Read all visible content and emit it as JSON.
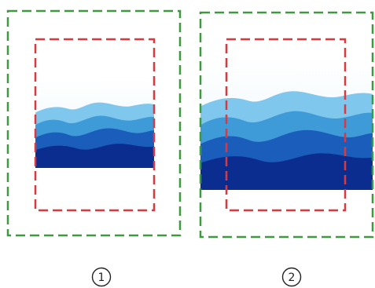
{
  "colors": {
    "outer_frame": "#3e9a3e",
    "inner_frame": "#d9393f",
    "sky_top": "#ffffff",
    "sky_light": "#e9f6fc",
    "mountain_far": "#7fc7ec",
    "mountain_mid": "#3f9ad8",
    "mountain_near": "#1a5dbb",
    "mountain_front": "#0a2d8f"
  },
  "panels": [
    {
      "label": "1",
      "image_fit": "fit-inside-safe-area"
    },
    {
      "label": "2",
      "image_fit": "fill-beyond-safe-area"
    }
  ]
}
